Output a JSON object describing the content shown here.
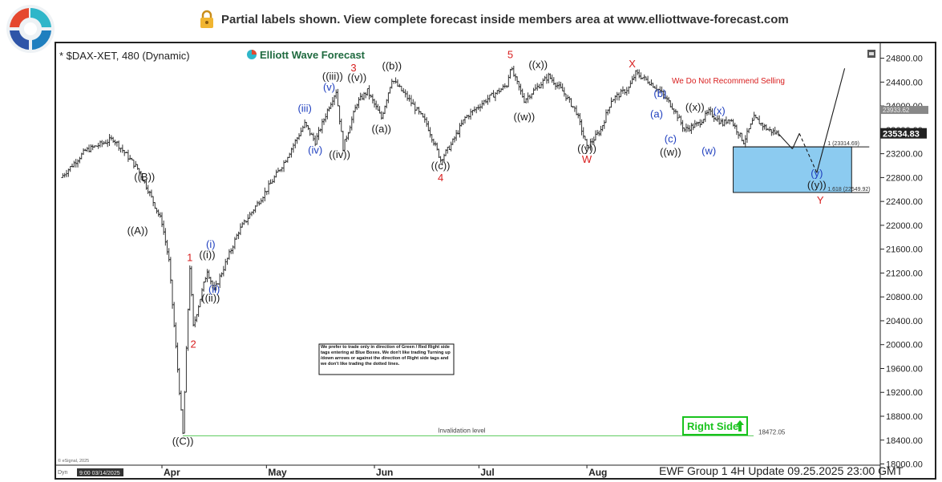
{
  "banner": {
    "text": "Partial labels shown. View complete forecast inside members area at www.elliottwave-forecast.com",
    "icon": "lock-icon"
  },
  "brand": {
    "name": "Elliott Wave Forecast",
    "logo_icon": "ewf-circle-logo"
  },
  "colors": {
    "wave_red": "#d81e1e",
    "wave_blue": "#1f3fbf",
    "wave_black": "#1a1a1a",
    "blue_box": "#8ccbf0",
    "right_side_green": "#19c31e",
    "invalidation_line": "#58c95a",
    "axis_label_bg": "#222222",
    "price_badge_bg": "#888888"
  },
  "chart_data": {
    "type": "bar",
    "subtype": "OHLC price chart with Elliott Wave annotations",
    "title": "* $DAX-XET, 480 (Dynamic)",
    "xlabel": "",
    "ylabel": "",
    "ylim": [
      17980,
      25050
    ],
    "x_ticks": [
      "Apr",
      "May",
      "Jun",
      "Jul",
      "Aug"
    ],
    "y_ticks": [
      18000,
      18400,
      18800,
      19200,
      19600,
      20000,
      20400,
      20800,
      21200,
      21600,
      22000,
      22400,
      22800,
      23200,
      23600,
      24000,
      24400,
      24800
    ],
    "y_tick_labels": [
      "18000.00",
      "18400.00",
      "18800.00",
      "19200.00",
      "19600.00",
      "20000.00",
      "20400.00",
      "20800.00",
      "21200.00",
      "21600.00",
      "22000.00",
      "22400.00",
      "22800.00",
      "23200.00",
      "23600.00",
      "24000.00",
      "24400.00",
      "24800.00"
    ],
    "last_price_label": "23534.83",
    "last_price": 23534.83,
    "secondary_price_label": "23933.62",
    "secondary_price": 23933.62,
    "price_path": [
      {
        "t": "Mar 03",
        "price": 22800
      },
      {
        "t": "Mar 10",
        "price": 23250
      },
      {
        "t": "Mar 18",
        "price": 23450
      },
      {
        "t": "Mar 25",
        "price": 22950
      },
      {
        "t": "Mar 28",
        "price": 22600
      },
      {
        "t": "Apr 01",
        "price": 22050
      },
      {
        "t": "Apr 03",
        "price": 21400
      },
      {
        "t": "Apr 07",
        "price": 18500
      },
      {
        "t": "Apr 09",
        "price": 21300
      },
      {
        "t": "Apr 10",
        "price": 20300
      },
      {
        "t": "Apr 14",
        "price": 21250
      },
      {
        "t": "Apr 16",
        "price": 20900
      },
      {
        "t": "Apr 23",
        "price": 21900
      },
      {
        "t": "Apr 30",
        "price": 22500
      },
      {
        "t": "May 06",
        "price": 23050
      },
      {
        "t": "May 12",
        "price": 23700
      },
      {
        "t": "May 15",
        "price": 23400
      },
      {
        "t": "May 19",
        "price": 24000
      },
      {
        "t": "May 21",
        "price": 24250
      },
      {
        "t": "May 23",
        "price": 23300
      },
      {
        "t": "May 27",
        "price": 24050
      },
      {
        "t": "May 30",
        "price": 24250
      },
      {
        "t": "Jun 03",
        "price": 23800
      },
      {
        "t": "Jun 06",
        "price": 24450
      },
      {
        "t": "Jun 11",
        "price": 24100
      },
      {
        "t": "Jun 16",
        "price": 23700
      },
      {
        "t": "Jun 20",
        "price": 23100
      },
      {
        "t": "Jun 23",
        "price": 23350
      },
      {
        "t": "Jun 27",
        "price": 23800
      },
      {
        "t": "Jul 03",
        "price": 24100
      },
      {
        "t": "Jul 09",
        "price": 24350
      },
      {
        "t": "Jul 10",
        "price": 24650
      },
      {
        "t": "Jul 14",
        "price": 24100
      },
      {
        "t": "Jul 21",
        "price": 24500
      },
      {
        "t": "Jul 25",
        "price": 24250
      },
      {
        "t": "Jul 29",
        "price": 23900
      },
      {
        "t": "Aug 01",
        "price": 23300
      },
      {
        "t": "Aug 05",
        "price": 23600
      },
      {
        "t": "Aug 08",
        "price": 24100
      },
      {
        "t": "Aug 13",
        "price": 24300
      },
      {
        "t": "Aug 15",
        "price": 24550
      },
      {
        "t": "Aug 19",
        "price": 24400
      },
      {
        "t": "Aug 22",
        "price": 24250
      },
      {
        "t": "Aug 26",
        "price": 23950
      },
      {
        "t": "Aug 29",
        "price": 23600
      },
      {
        "t": "Sep 02",
        "price": 23700
      },
      {
        "t": "Sep 05",
        "price": 23900
      },
      {
        "t": "Sep 09",
        "price": 23700
      },
      {
        "t": "Sep 11",
        "price": 23800
      },
      {
        "t": "Sep 15",
        "price": 23400
      },
      {
        "t": "Sep 18",
        "price": 23800
      },
      {
        "t": "Sep 22",
        "price": 23600
      },
      {
        "t": "Sep 25",
        "price": 23534.83
      }
    ],
    "projection_path": [
      {
        "t": "Sep 25",
        "price": 23534.83
      },
      {
        "t": "Sep 29",
        "price": 23280
      },
      {
        "t": "Oct 01",
        "price": 23540
      },
      {
        "t": "Oct 06",
        "price": 22880
      },
      {
        "t": "Oct 14",
        "price": 24630
      }
    ],
    "blue_box": {
      "from": "Sep 12",
      "to": "Oct 16",
      "high": 23314.69,
      "low": 22549.92
    },
    "blue_box_labels": {
      "high": "1 (23314.69)",
      "low": "1.618 (22549.92)"
    },
    "invalidation": {
      "label": "Invalidation level",
      "value": 18472.05,
      "value_label": "18472.05"
    },
    "note_selling": "We Do Not Recommend Selling",
    "note_box_text": "We prefer to trade only in direction of Green / Red Right side tags entering at Blue Boxes. We don't like trading Turning up /down arrows or against the direction of Right side tags and we don't like trading the dotted lines.",
    "right_side_tag": "Right Side",
    "footer": "EWF Group 1 4H   Update 09.25.2025 23:00 GMT",
    "footer_small": "© eSignal, 2025",
    "footer_date": "9:00 03/14/2025",
    "footer_dyn": "Dyn",
    "wave_labels": [
      {
        "text": "((A))",
        "t": "Mar 25",
        "price": 21850,
        "color": "black"
      },
      {
        "text": "((B))",
        "t": "Mar 27",
        "price": 22750,
        "color": "black"
      },
      {
        "text": "((C))",
        "t": "Apr 07",
        "price": 18320,
        "color": "black"
      },
      {
        "text": "1",
        "t": "Apr 09",
        "price": 21400,
        "color": "red"
      },
      {
        "text": "2",
        "t": "Apr 10",
        "price": 19950,
        "color": "red"
      },
      {
        "text": "((i))",
        "t": "Apr 14",
        "price": 21450,
        "color": "black"
      },
      {
        "text": "(i)",
        "t": "Apr 15",
        "price": 21620,
        "color": "blue"
      },
      {
        "text": "((ii))",
        "t": "Apr 15",
        "price": 20720,
        "color": "black"
      },
      {
        "text": "(ii)",
        "t": "Apr 16",
        "price": 20870,
        "color": "blue"
      },
      {
        "text": "(iii)",
        "t": "May 12",
        "price": 23900,
        "color": "blue"
      },
      {
        "text": "(iv)",
        "t": "May 15",
        "price": 23200,
        "color": "blue"
      },
      {
        "text": "(v)",
        "t": "May 19",
        "price": 24260,
        "color": "blue"
      },
      {
        "text": "((iii))",
        "t": "May 20",
        "price": 24440,
        "color": "black"
      },
      {
        "text": "((iv))",
        "t": "May 22",
        "price": 23130,
        "color": "black"
      },
      {
        "text": "((v))",
        "t": "May 27",
        "price": 24420,
        "color": "black"
      },
      {
        "text": "3",
        "t": "May 26",
        "price": 24580,
        "color": "red"
      },
      {
        "text": "((a))",
        "t": "Jun 03",
        "price": 23560,
        "color": "black"
      },
      {
        "text": "((b))",
        "t": "Jun 06",
        "price": 24610,
        "color": "black"
      },
      {
        "text": "((c))",
        "t": "Jun 20",
        "price": 22940,
        "color": "black"
      },
      {
        "text": "4",
        "t": "Jun 20",
        "price": 22740,
        "color": "red"
      },
      {
        "text": "5",
        "t": "Jul 10",
        "price": 24800,
        "color": "red"
      },
      {
        "text": "((w))",
        "t": "Jul 14",
        "price": 23760,
        "color": "black"
      },
      {
        "text": "((x))",
        "t": "Jul 18",
        "price": 24630,
        "color": "black"
      },
      {
        "text": "((y))",
        "t": "Aug 01",
        "price": 23230,
        "color": "black"
      },
      {
        "text": "W",
        "t": "Aug 01",
        "price": 23050,
        "color": "red"
      },
      {
        "text": "X",
        "t": "Aug 14",
        "price": 24650,
        "color": "red"
      },
      {
        "text": "(a)",
        "t": "Aug 21",
        "price": 23810,
        "color": "blue"
      },
      {
        "text": "(b)",
        "t": "Aug 22",
        "price": 24150,
        "color": "blue"
      },
      {
        "text": "(c)",
        "t": "Aug 25",
        "price": 23390,
        "color": "blue"
      },
      {
        "text": "((w))",
        "t": "Aug 25",
        "price": 23170,
        "color": "black"
      },
      {
        "text": "((x))",
        "t": "Sep 01",
        "price": 23920,
        "color": "black"
      },
      {
        "text": "(x)",
        "t": "Sep 08",
        "price": 23860,
        "color": "blue"
      },
      {
        "text": "(w)",
        "t": "Sep 05",
        "price": 23190,
        "color": "blue"
      },
      {
        "text": "(y)",
        "t": "Oct 06",
        "price": 22810,
        "color": "blue"
      },
      {
        "text": "((y))",
        "t": "Oct 06",
        "price": 22620,
        "color": "black"
      },
      {
        "text": "Y",
        "t": "Oct 07",
        "price": 22360,
        "color": "red"
      }
    ]
  }
}
